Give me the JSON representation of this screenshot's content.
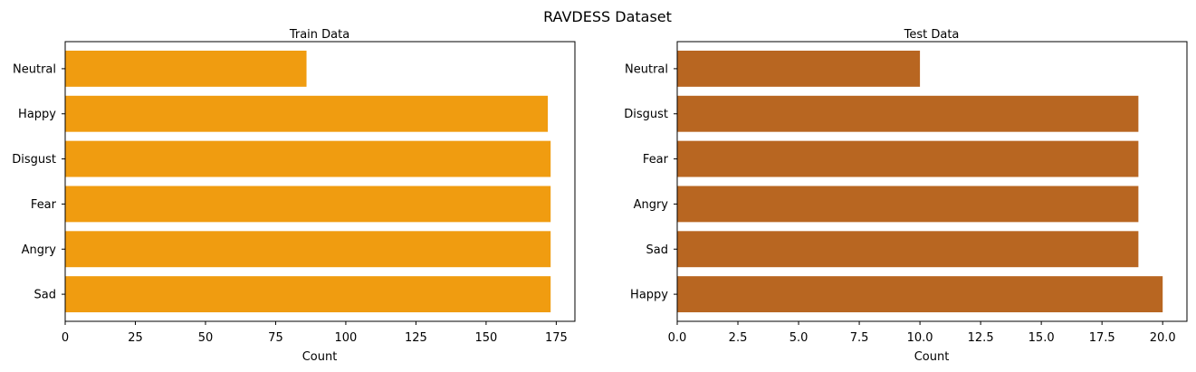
{
  "figure": {
    "suptitle": "RAVDESS Dataset"
  },
  "chart_data": [
    {
      "type": "bar",
      "orientation": "horizontal",
      "title": "Train Data",
      "xlabel": "Count",
      "ylabel": "",
      "categories": [
        "Sad",
        "Angry",
        "Fear",
        "Disgust",
        "Happy",
        "Neutral"
      ],
      "values": [
        173,
        173,
        173,
        173,
        172,
        86
      ],
      "xlim": [
        0,
        181.65
      ],
      "xticks": [
        0,
        25,
        50,
        75,
        100,
        125,
        150,
        175
      ],
      "xtick_labels": [
        "0",
        "25",
        "50",
        "75",
        "100",
        "125",
        "150",
        "175"
      ],
      "color": "#f09c10",
      "grid": false,
      "legend": "none"
    },
    {
      "type": "bar",
      "orientation": "horizontal",
      "title": "Test Data",
      "xlabel": "Count",
      "ylabel": "",
      "categories": [
        "Happy",
        "Sad",
        "Angry",
        "Fear",
        "Disgust",
        "Neutral"
      ],
      "values": [
        20,
        19,
        19,
        19,
        19,
        10
      ],
      "xlim": [
        0,
        21
      ],
      "xticks": [
        0,
        2.5,
        5,
        7.5,
        10,
        12.5,
        15,
        17.5,
        20
      ],
      "xtick_labels": [
        "0.0",
        "2.5",
        "5.0",
        "7.5",
        "10.0",
        "12.5",
        "15.0",
        "17.5",
        "20.0"
      ],
      "color": "#b86621",
      "grid": false,
      "legend": "none"
    }
  ]
}
